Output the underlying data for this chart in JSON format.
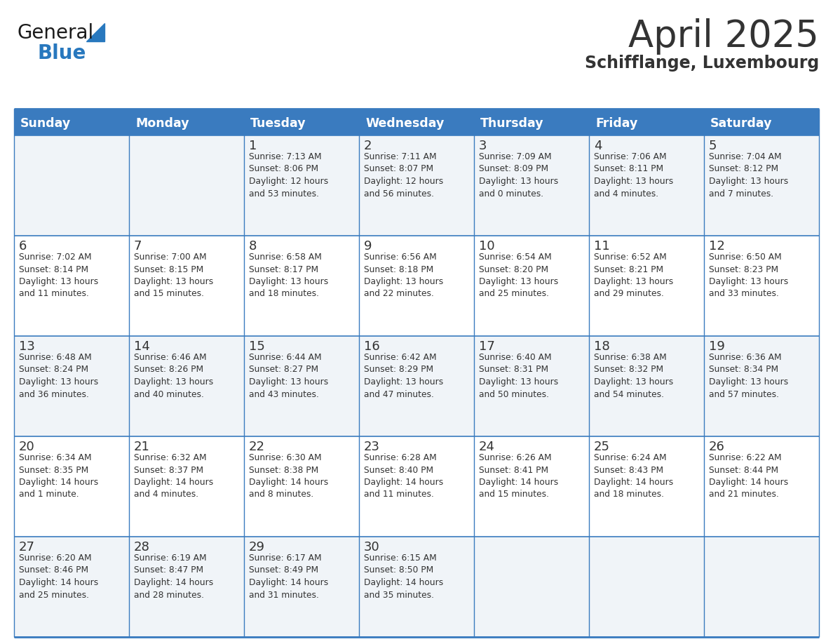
{
  "title": "April 2025",
  "subtitle": "Schifflange, Luxembourg",
  "header_bg_color": "#3a7bbf",
  "header_text_color": "#ffffff",
  "cell_bg_odd": "#f0f4f8",
  "cell_bg_even": "#ffffff",
  "border_color": "#3a7bbf",
  "text_color": "#333333",
  "days_of_week": [
    "Sunday",
    "Monday",
    "Tuesday",
    "Wednesday",
    "Thursday",
    "Friday",
    "Saturday"
  ],
  "weeks": [
    [
      {
        "day": "",
        "text": ""
      },
      {
        "day": "",
        "text": ""
      },
      {
        "day": "1",
        "text": "Sunrise: 7:13 AM\nSunset: 8:06 PM\nDaylight: 12 hours\nand 53 minutes."
      },
      {
        "day": "2",
        "text": "Sunrise: 7:11 AM\nSunset: 8:07 PM\nDaylight: 12 hours\nand 56 minutes."
      },
      {
        "day": "3",
        "text": "Sunrise: 7:09 AM\nSunset: 8:09 PM\nDaylight: 13 hours\nand 0 minutes."
      },
      {
        "day": "4",
        "text": "Sunrise: 7:06 AM\nSunset: 8:11 PM\nDaylight: 13 hours\nand 4 minutes."
      },
      {
        "day": "5",
        "text": "Sunrise: 7:04 AM\nSunset: 8:12 PM\nDaylight: 13 hours\nand 7 minutes."
      }
    ],
    [
      {
        "day": "6",
        "text": "Sunrise: 7:02 AM\nSunset: 8:14 PM\nDaylight: 13 hours\nand 11 minutes."
      },
      {
        "day": "7",
        "text": "Sunrise: 7:00 AM\nSunset: 8:15 PM\nDaylight: 13 hours\nand 15 minutes."
      },
      {
        "day": "8",
        "text": "Sunrise: 6:58 AM\nSunset: 8:17 PM\nDaylight: 13 hours\nand 18 minutes."
      },
      {
        "day": "9",
        "text": "Sunrise: 6:56 AM\nSunset: 8:18 PM\nDaylight: 13 hours\nand 22 minutes."
      },
      {
        "day": "10",
        "text": "Sunrise: 6:54 AM\nSunset: 8:20 PM\nDaylight: 13 hours\nand 25 minutes."
      },
      {
        "day": "11",
        "text": "Sunrise: 6:52 AM\nSunset: 8:21 PM\nDaylight: 13 hours\nand 29 minutes."
      },
      {
        "day": "12",
        "text": "Sunrise: 6:50 AM\nSunset: 8:23 PM\nDaylight: 13 hours\nand 33 minutes."
      }
    ],
    [
      {
        "day": "13",
        "text": "Sunrise: 6:48 AM\nSunset: 8:24 PM\nDaylight: 13 hours\nand 36 minutes."
      },
      {
        "day": "14",
        "text": "Sunrise: 6:46 AM\nSunset: 8:26 PM\nDaylight: 13 hours\nand 40 minutes."
      },
      {
        "day": "15",
        "text": "Sunrise: 6:44 AM\nSunset: 8:27 PM\nDaylight: 13 hours\nand 43 minutes."
      },
      {
        "day": "16",
        "text": "Sunrise: 6:42 AM\nSunset: 8:29 PM\nDaylight: 13 hours\nand 47 minutes."
      },
      {
        "day": "17",
        "text": "Sunrise: 6:40 AM\nSunset: 8:31 PM\nDaylight: 13 hours\nand 50 minutes."
      },
      {
        "day": "18",
        "text": "Sunrise: 6:38 AM\nSunset: 8:32 PM\nDaylight: 13 hours\nand 54 minutes."
      },
      {
        "day": "19",
        "text": "Sunrise: 6:36 AM\nSunset: 8:34 PM\nDaylight: 13 hours\nand 57 minutes."
      }
    ],
    [
      {
        "day": "20",
        "text": "Sunrise: 6:34 AM\nSunset: 8:35 PM\nDaylight: 14 hours\nand 1 minute."
      },
      {
        "day": "21",
        "text": "Sunrise: 6:32 AM\nSunset: 8:37 PM\nDaylight: 14 hours\nand 4 minutes."
      },
      {
        "day": "22",
        "text": "Sunrise: 6:30 AM\nSunset: 8:38 PM\nDaylight: 14 hours\nand 8 minutes."
      },
      {
        "day": "23",
        "text": "Sunrise: 6:28 AM\nSunset: 8:40 PM\nDaylight: 14 hours\nand 11 minutes."
      },
      {
        "day": "24",
        "text": "Sunrise: 6:26 AM\nSunset: 8:41 PM\nDaylight: 14 hours\nand 15 minutes."
      },
      {
        "day": "25",
        "text": "Sunrise: 6:24 AM\nSunset: 8:43 PM\nDaylight: 14 hours\nand 18 minutes."
      },
      {
        "day": "26",
        "text": "Sunrise: 6:22 AM\nSunset: 8:44 PM\nDaylight: 14 hours\nand 21 minutes."
      }
    ],
    [
      {
        "day": "27",
        "text": "Sunrise: 6:20 AM\nSunset: 8:46 PM\nDaylight: 14 hours\nand 25 minutes."
      },
      {
        "day": "28",
        "text": "Sunrise: 6:19 AM\nSunset: 8:47 PM\nDaylight: 14 hours\nand 28 minutes."
      },
      {
        "day": "29",
        "text": "Sunrise: 6:17 AM\nSunset: 8:49 PM\nDaylight: 14 hours\nand 31 minutes."
      },
      {
        "day": "30",
        "text": "Sunrise: 6:15 AM\nSunset: 8:50 PM\nDaylight: 14 hours\nand 35 minutes."
      },
      {
        "day": "",
        "text": ""
      },
      {
        "day": "",
        "text": ""
      },
      {
        "day": "",
        "text": ""
      }
    ]
  ],
  "logo_general_color": "#1a1a1a",
  "logo_blue_color": "#2878be",
  "logo_triangle_color": "#2878be"
}
